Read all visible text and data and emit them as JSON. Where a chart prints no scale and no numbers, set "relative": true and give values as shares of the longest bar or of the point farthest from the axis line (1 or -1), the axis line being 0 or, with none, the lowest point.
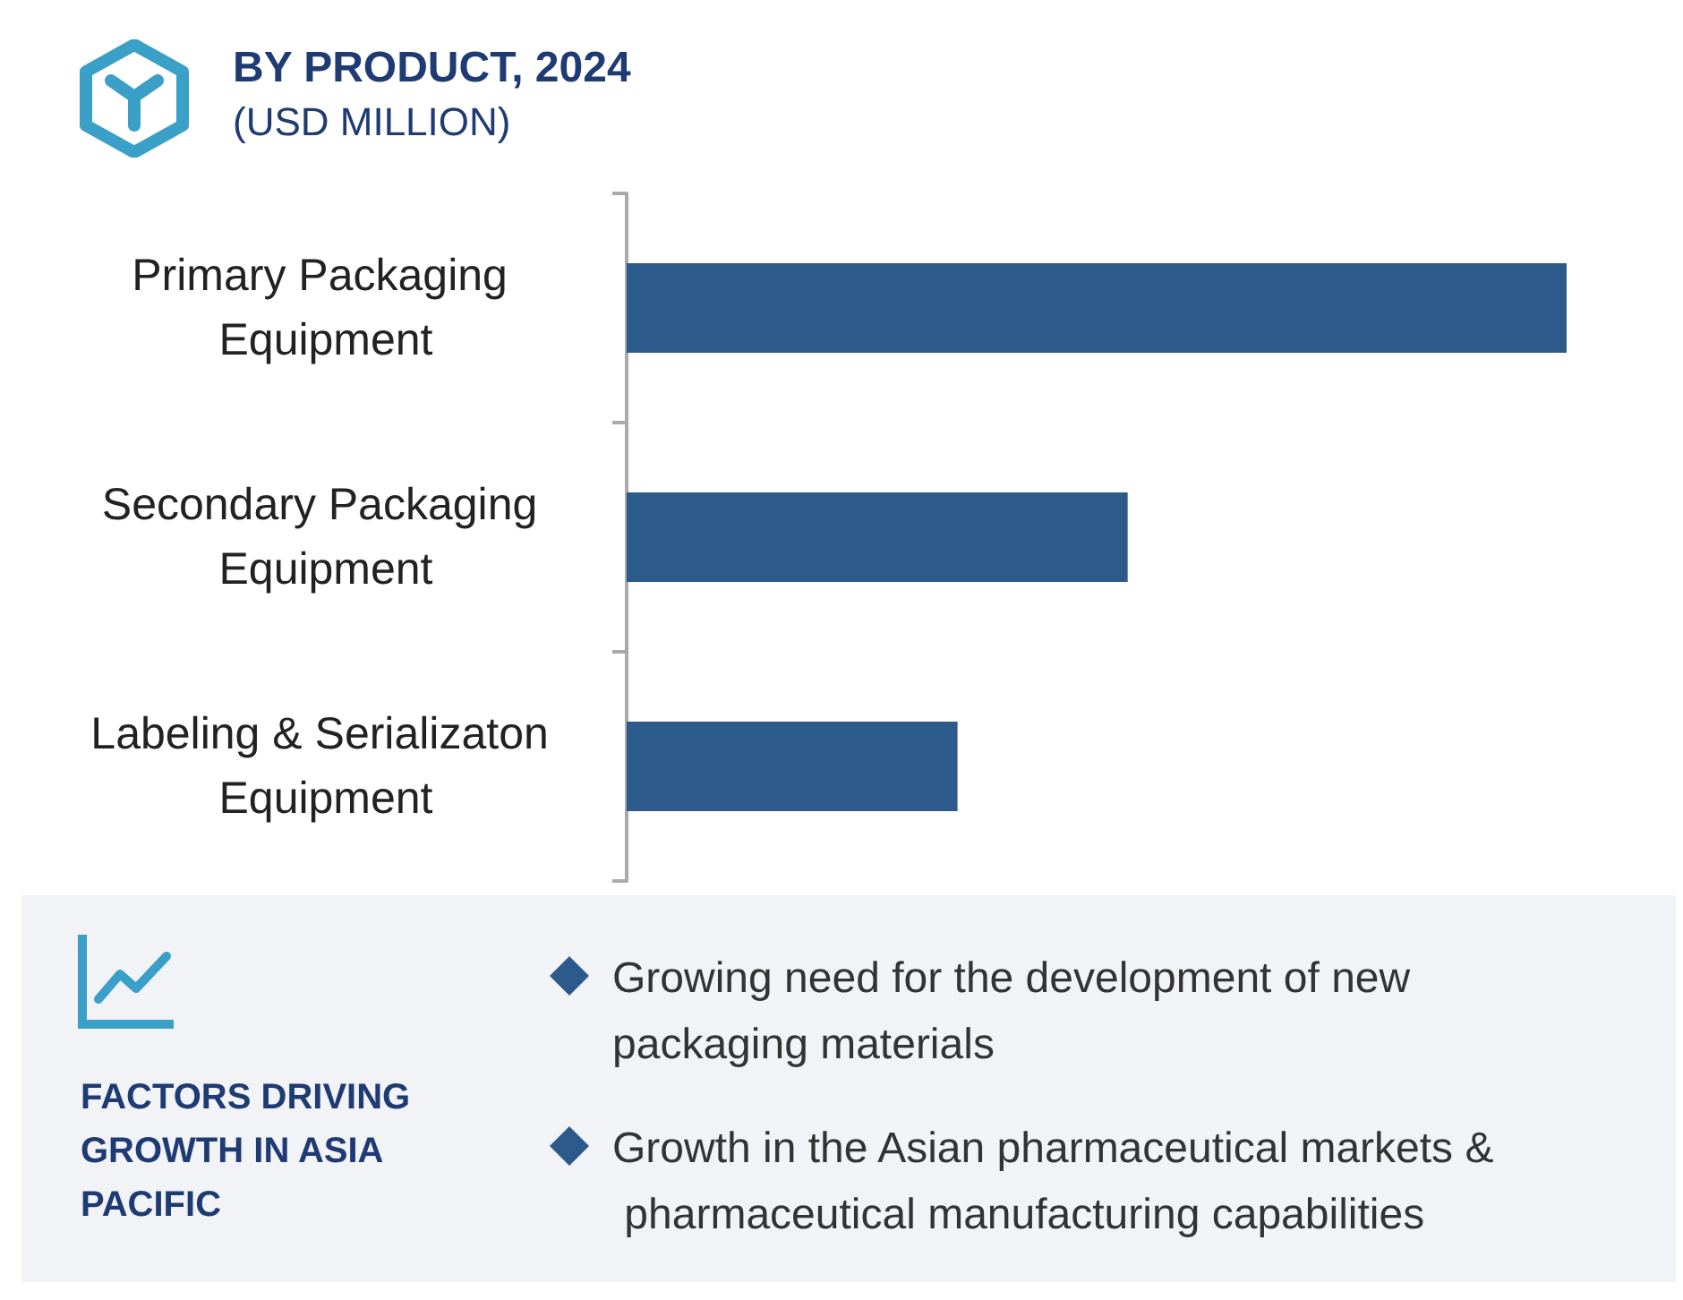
{
  "chart_data": {
    "type": "bar",
    "title": "BY PRODUCT, 2024",
    "subtitle": "(USD MILLION)",
    "categories": [
      "Primary Packaging Equipment",
      "Secondary Packaging Equipment",
      "Labeling & Serializaton Equipment"
    ],
    "values": [
      1,
      0.533,
      0.352
    ],
    "color": "#2c5a8a",
    "orientation": "horizontal",
    "relative": true,
    "annotations": [
      "FACTORS DRIVING GROWTH IN ASIA PACIFIC",
      "Growing need for the development of new packaging materials",
      "Growth in the Asian pharmaceutical markets & pharmaceutical manufacturing capabilities"
    ]
  }
}
